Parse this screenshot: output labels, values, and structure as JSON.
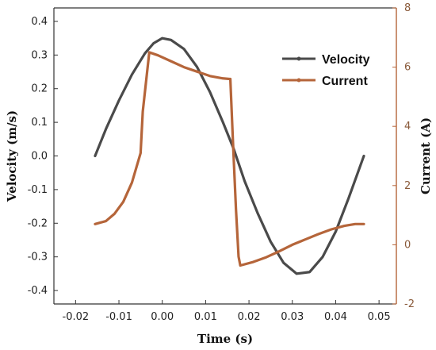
{
  "chart_data": {
    "type": "line",
    "title": "",
    "xlabel": "Time (s)",
    "ylabel_left": "Velocity (m/s)",
    "ylabel_right": "Current (A)",
    "xlim": [
      -0.025,
      0.054
    ],
    "ylim_left": [
      -0.44,
      0.44
    ],
    "ylim_right": [
      -2,
      8
    ],
    "x_ticks": [
      -0.02,
      -0.01,
      0.0,
      0.01,
      0.02,
      0.03,
      0.04,
      0.05
    ],
    "x_tick_labels": [
      "-0.02",
      "-0.01",
      "0.00",
      "0.01",
      "0.02",
      "0.03",
      "0.04",
      "0.05"
    ],
    "y_left_ticks": [
      -0.4,
      -0.3,
      -0.2,
      -0.1,
      0.0,
      0.1,
      0.2,
      0.3,
      0.4
    ],
    "y_left_tick_labels": [
      "-0.4",
      "-0.3",
      "-0.2",
      "-0.1",
      "0.0",
      "0.1",
      "0.2",
      "0.3",
      "0.4"
    ],
    "y_right_ticks": [
      -2,
      0,
      2,
      4,
      6,
      8
    ],
    "y_right_tick_labels": [
      "-2",
      "0",
      "2",
      "4",
      "6",
      "8"
    ],
    "legend_position": "top-right",
    "grid": false,
    "series": [
      {
        "name": "Velocity",
        "axis": "left",
        "color": "#4a4a4a",
        "x": [
          -0.0155,
          -0.013,
          -0.01,
          -0.007,
          -0.004,
          -0.002,
          0.0,
          0.002,
          0.005,
          0.008,
          0.011,
          0.014,
          0.0165,
          0.019,
          0.022,
          0.025,
          0.028,
          0.031,
          0.034,
          0.037,
          0.04,
          0.043,
          0.0465
        ],
        "y": [
          0.0,
          0.08,
          0.165,
          0.242,
          0.305,
          0.335,
          0.35,
          0.345,
          0.318,
          0.265,
          0.19,
          0.1,
          0.02,
          -0.075,
          -0.17,
          -0.255,
          -0.318,
          -0.35,
          -0.345,
          -0.3,
          -0.225,
          -0.125,
          0.0
        ]
      },
      {
        "name": "Current",
        "axis": "right",
        "color": "#b5653a",
        "x": [
          -0.0155,
          -0.013,
          -0.011,
          -0.009,
          -0.007,
          -0.005,
          -0.0045,
          -0.003,
          -0.001,
          0.002,
          0.005,
          0.008,
          0.011,
          0.014,
          0.0155,
          0.0157,
          0.0163,
          0.017,
          0.0176,
          0.018,
          0.021,
          0.024,
          0.027,
          0.03,
          0.033,
          0.036,
          0.039,
          0.042,
          0.0445,
          0.0465
        ],
        "y": [
          0.7,
          0.8,
          1.05,
          1.45,
          2.1,
          3.1,
          4.5,
          6.5,
          6.4,
          6.2,
          6.0,
          5.85,
          5.7,
          5.62,
          5.6,
          5.6,
          3.5,
          1.2,
          -0.4,
          -0.7,
          -0.58,
          -0.42,
          -0.22,
          0.0,
          0.18,
          0.36,
          0.52,
          0.64,
          0.7,
          0.7
        ]
      }
    ]
  }
}
